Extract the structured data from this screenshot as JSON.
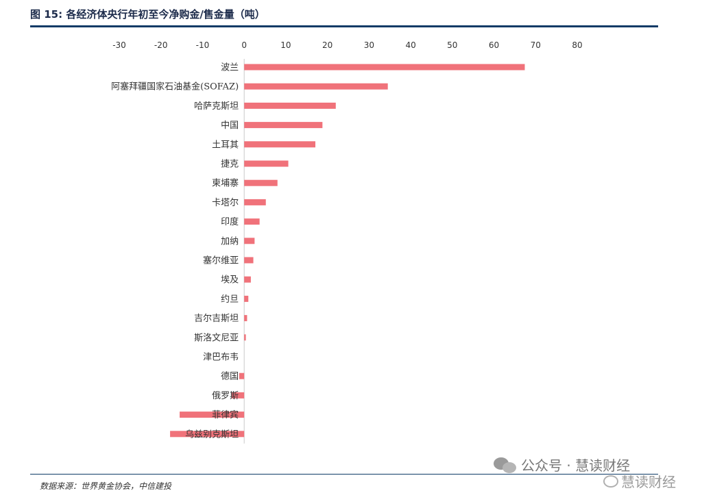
{
  "header": {
    "title": "图 15: 各经济体央行年初至今净购金/售金量（吨）"
  },
  "footer": {
    "source": "数据来源：世界黄金协会，中信建投",
    "watermark_account": "公众号 · 慧读财经",
    "watermark_weibo": "慧读财经"
  },
  "colors": {
    "bar": "#f0727a",
    "rule": "#0d3a66",
    "axis": "#c8c8c8"
  },
  "chart_data": {
    "type": "bar",
    "orientation": "horizontal",
    "title": "各经济体央行年初至今净购金/售金量（吨）",
    "xlim": [
      -30,
      80
    ],
    "xticks": [
      -30,
      -20,
      -10,
      0,
      10,
      20,
      30,
      40,
      50,
      60,
      70,
      80
    ],
    "xtick_labels": [
      "-30",
      "-20",
      "-10",
      "0",
      "10",
      "20",
      "30",
      "40",
      "50",
      "60",
      "70",
      "80"
    ],
    "categories": [
      "波兰",
      "阿塞拜疆国家石油基金(SOFAZ)",
      "哈萨克斯坦",
      "中国",
      "土耳其",
      "捷克",
      "柬埔寨",
      "卡塔尔",
      "印度",
      "加纳",
      "塞尔维亚",
      "埃及",
      "约旦",
      "吉尔吉斯坦",
      "斯洛文尼亚",
      "津巴布韦",
      "德国",
      "俄罗斯",
      "菲律宾",
      "乌兹别克斯坦"
    ],
    "values": [
      67.4,
      34.5,
      22.0,
      18.8,
      17.1,
      10.6,
      8.0,
      5.2,
      3.7,
      2.5,
      2.2,
      1.6,
      1.0,
      0.7,
      0.4,
      0,
      -1.2,
      -3.0,
      -15.5,
      -17.8
    ],
    "grid": false,
    "legend": "none"
  }
}
